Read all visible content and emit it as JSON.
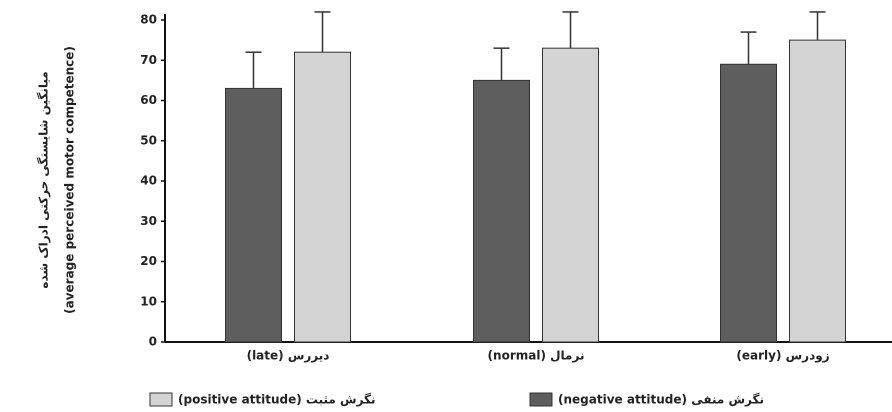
{
  "chart_data": {
    "type": "bar",
    "y_label": [
      "میانگین شایستگی حرکتی ادراک شده",
      "(average perceived motor competence)"
    ],
    "categories": [
      "(late)  دیررس",
      "(normal)  نرمال",
      "(early)  زودرس"
    ],
    "series": [
      {
        "name": "(negative attitude)  نگرش منفی",
        "color": "#5e5e5e",
        "values": [
          63,
          65,
          69
        ],
        "errors": [
          9,
          8,
          8
        ]
      },
      {
        "name": "(positive attitude)  نگرش مثبت",
        "color": "#d4d4d4",
        "values": [
          72,
          73,
          75
        ],
        "errors": [
          10,
          9,
          7
        ]
      }
    ],
    "ylim": [
      0,
      80
    ],
    "yticks": [
      0,
      10,
      20,
      30,
      40,
      50,
      60,
      70,
      80
    ],
    "grid": false
  }
}
